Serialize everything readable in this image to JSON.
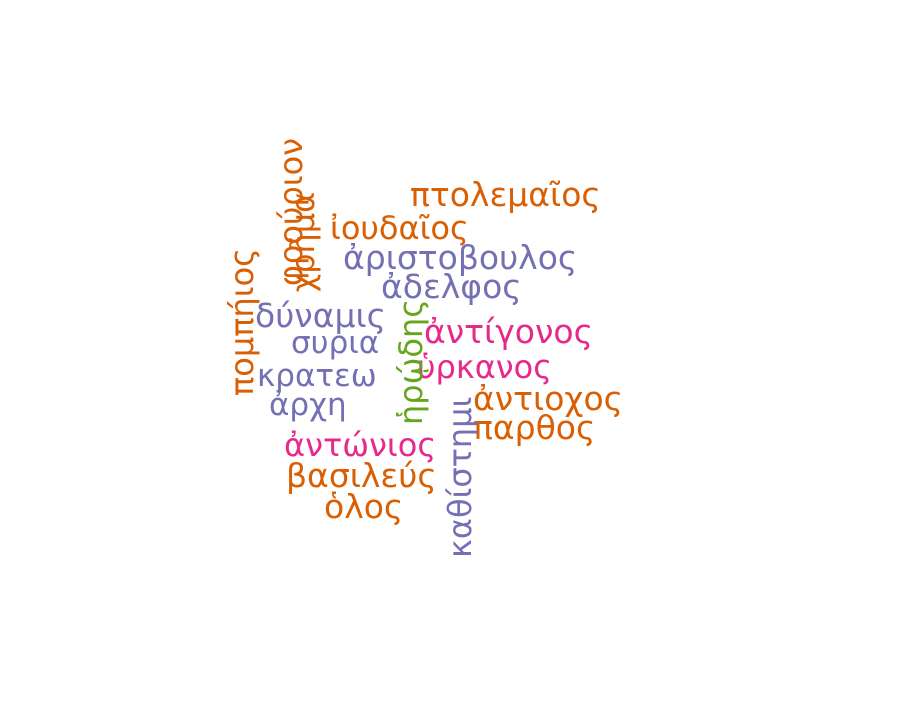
{
  "colors": {
    "orange": "#d95f02",
    "purple": "#7570b3",
    "pink": "#e7298a",
    "green": "#66a61e"
  },
  "words": {
    "ptolemaios": "πτολεμαῖος",
    "ioudaios": "ἰουδαῖος",
    "aristoboulos": "ἀριστοβουλος",
    "adelphos": "ἀδελφος",
    "dynamis": "δύναμις",
    "syria": "συρια",
    "krateo": "κρατεω",
    "arche": "ἀρχη",
    "antonios": "ἀντώνιος",
    "basileus": "βασιλεύς",
    "holos": "ὁλος",
    "antigonos": "ἀντίγονος",
    "hyrkanos": "ὑρκανος",
    "antiochos": "ἀντιοχος",
    "parthos": "παρθος",
    "pompeios": "πομπήιος",
    "phrourion": "φρούριον",
    "chrema": "χρῆμα",
    "herodes": "ἡρῴδης",
    "kathistemi": "καθίστημι"
  }
}
